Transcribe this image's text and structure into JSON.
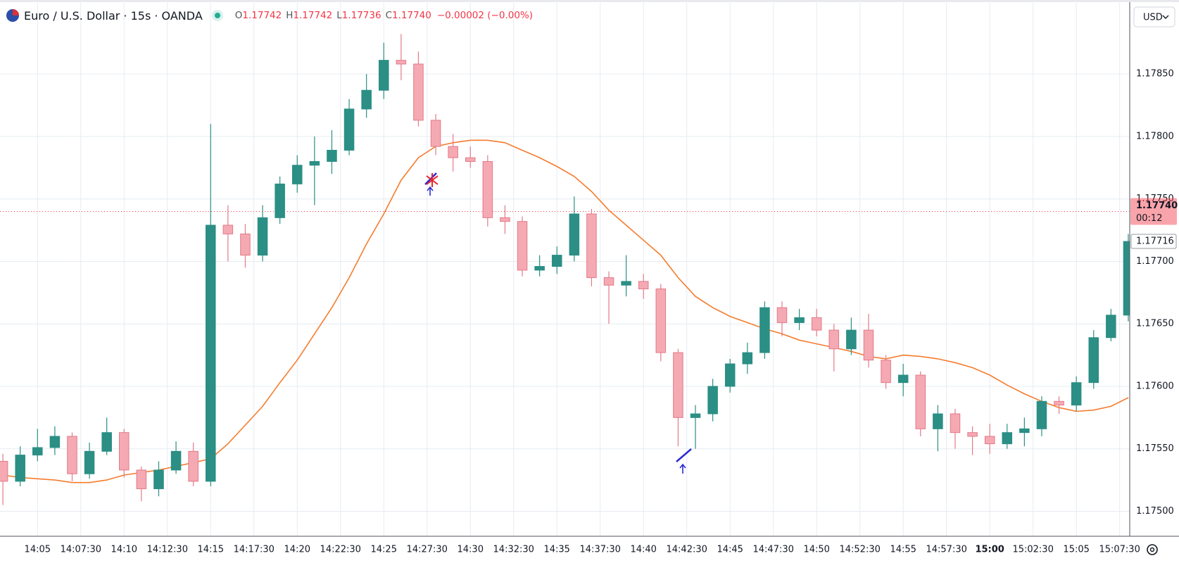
{
  "chart_data": {
    "type": "candlestick",
    "title": "Euro / U.S. Dollar · 15s · OANDA",
    "ohlc": [
      {
        "label": "O",
        "value": "1.17742"
      },
      {
        "label": "H",
        "value": "1.17742"
      },
      {
        "label": "L",
        "value": "1.17736"
      },
      {
        "label": "C",
        "value": "1.17740"
      }
    ],
    "change": "−0.00002 (−0.00%)",
    "currency": "USD",
    "up_color": "#2b8f85",
    "down_color": "#f5a9b3",
    "down_stroke": "#e27b89",
    "grid": true,
    "x": [
      "14:03",
      "14:04",
      "14:05",
      "14:06",
      "14:07",
      "14:08",
      "14:09",
      "14:10",
      "14:11",
      "14:12",
      "14:13",
      "14:14",
      "14:15",
      "14:16",
      "14:17",
      "14:18",
      "14:19",
      "14:20",
      "14:21",
      "14:22",
      "14:23",
      "14:24",
      "14:25",
      "14:26",
      "14:27",
      "14:28",
      "14:29",
      "14:30",
      "14:31",
      "14:32",
      "14:33",
      "14:34",
      "14:35",
      "14:36",
      "14:37",
      "14:38",
      "14:39",
      "14:40",
      "14:41",
      "14:42",
      "14:43",
      "14:44",
      "14:45",
      "14:46",
      "14:47",
      "14:48",
      "14:49",
      "14:50",
      "14:51",
      "14:52",
      "14:53",
      "14:54",
      "14:55",
      "14:56",
      "14:57",
      "14:58",
      "14:59",
      "15:00",
      "15:01",
      "15:02",
      "15:03",
      "15:04",
      "15:05",
      "15:06",
      "15:07",
      "15:08"
    ],
    "open": [
      1.1754,
      1.17524,
      1.17545,
      1.17551,
      1.1756,
      1.1753,
      1.17548,
      1.17563,
      1.17533,
      1.17518,
      1.17533,
      1.17548,
      1.17524,
      1.17729,
      1.17722,
      1.17705,
      1.17735,
      1.17762,
      1.17777,
      1.1778,
      1.17789,
      1.17822,
      1.17837,
      1.17861,
      1.17858,
      1.17813,
      1.17792,
      1.17783,
      1.1778,
      1.17735,
      1.17732,
      1.17693,
      1.17696,
      1.17705,
      1.17738,
      1.17687,
      1.17681,
      1.17684,
      1.17678,
      1.17627,
      1.17575,
      1.17578,
      1.176,
      1.17618,
      1.17627,
      1.17663,
      1.17651,
      1.17655,
      1.17645,
      1.1763,
      1.17645,
      1.17621,
      1.17603,
      1.17609,
      1.17566,
      1.17578,
      1.17563,
      1.1756,
      1.17554,
      1.17563,
      1.17566,
      1.17588,
      1.17585,
      1.17603,
      1.17639,
      1.17657
    ],
    "high": [
      1.17546,
      1.17552,
      1.17566,
      1.17568,
      1.17563,
      1.17555,
      1.17575,
      1.17566,
      1.17536,
      1.1754,
      1.17556,
      1.17555,
      1.1781,
      1.17745,
      1.1773,
      1.17745,
      1.17768,
      1.17785,
      1.178,
      1.17805,
      1.1783,
      1.1785,
      1.17875,
      1.17882,
      1.17868,
      1.17818,
      1.17802,
      1.17792,
      1.17785,
      1.17745,
      1.17736,
      1.17705,
      1.17712,
      1.17752,
      1.17742,
      1.17692,
      1.17705,
      1.1769,
      1.17682,
      1.1763,
      1.17585,
      1.17606,
      1.17622,
      1.17635,
      1.17668,
      1.17668,
      1.17662,
      1.17662,
      1.1765,
      1.17655,
      1.17658,
      1.17625,
      1.17618,
      1.17612,
      1.17585,
      1.17582,
      1.17568,
      1.1757,
      1.1757,
      1.17575,
      1.17592,
      1.17592,
      1.17608,
      1.17645,
      1.17662,
      1.17722
    ],
    "low": [
      1.17505,
      1.1752,
      1.1754,
      1.17545,
      1.17524,
      1.17526,
      1.17545,
      1.17527,
      1.17508,
      1.17512,
      1.1753,
      1.1752,
      1.1752,
      1.177,
      1.17695,
      1.177,
      1.1773,
      1.17755,
      1.17745,
      1.1777,
      1.17785,
      1.17815,
      1.1783,
      1.17845,
      1.17808,
      1.17785,
      1.17772,
      1.17775,
      1.17728,
      1.17722,
      1.17688,
      1.17688,
      1.1769,
      1.177,
      1.1768,
      1.1765,
      1.17672,
      1.1767,
      1.1762,
      1.17552,
      1.1755,
      1.17572,
      1.17595,
      1.1761,
      1.17622,
      1.1764,
      1.17645,
      1.1764,
      1.17612,
      1.17625,
      1.17615,
      1.17598,
      1.17592,
      1.1756,
      1.17548,
      1.1755,
      1.17545,
      1.17546,
      1.1755,
      1.17552,
      1.1756,
      1.17578,
      1.1758,
      1.17598,
      1.17636,
      1.17652
    ],
    "close": [
      1.17524,
      1.17545,
      1.17551,
      1.1756,
      1.1753,
      1.17548,
      1.17563,
      1.17533,
      1.17518,
      1.17533,
      1.17548,
      1.17524,
      1.17729,
      1.17722,
      1.17705,
      1.17735,
      1.17762,
      1.17777,
      1.1778,
      1.17789,
      1.17822,
      1.17837,
      1.17861,
      1.17858,
      1.17813,
      1.17792,
      1.17783,
      1.1778,
      1.17735,
      1.17732,
      1.17693,
      1.17696,
      1.17705,
      1.17738,
      1.17687,
      1.17681,
      1.17684,
      1.17678,
      1.17627,
      1.17575,
      1.17578,
      1.176,
      1.17618,
      1.17627,
      1.17663,
      1.17651,
      1.17655,
      1.17645,
      1.1763,
      1.17645,
      1.17621,
      1.17603,
      1.17609,
      1.17566,
      1.17578,
      1.17563,
      1.1756,
      1.17554,
      1.17563,
      1.17566,
      1.17588,
      1.17585,
      1.17603,
      1.17639,
      1.17657,
      1.17716
    ],
    "ma": {
      "color": "#f57c2e",
      "values": [
        1.17529,
        1.17527,
        1.17526,
        1.17525,
        1.17523,
        1.17523,
        1.17525,
        1.17529,
        1.17531,
        1.17533,
        1.17536,
        1.17539,
        1.17542,
        1.17554,
        1.17569,
        1.17584,
        1.17603,
        1.17621,
        1.17642,
        1.17663,
        1.17687,
        1.17714,
        1.17738,
        1.17765,
        1.17783,
        1.17792,
        1.17795,
        1.17797,
        1.17797,
        1.17795,
        1.17789,
        1.17783,
        1.17776,
        1.17768,
        1.17756,
        1.17741,
        1.17729,
        1.17717,
        1.17705,
        1.17687,
        1.17672,
        1.17663,
        1.17656,
        1.17651,
        1.17646,
        1.17642,
        1.17637,
        1.17634,
        1.17631,
        1.17628,
        1.17624,
        1.17622,
        1.17625,
        1.17624,
        1.17622,
        1.17619,
        1.17615,
        1.17609,
        1.17601,
        1.17594,
        1.17588,
        1.17583,
        1.1758,
        1.17581,
        1.17584,
        1.17591
      ]
    },
    "xlim": [
      "14:02:50",
      "15:08:05"
    ],
    "xticks": [
      "14:05",
      "14:07:30",
      "14:10",
      "14:12:30",
      "14:15",
      "14:17:30",
      "14:20",
      "14:22:30",
      "14:25",
      "14:27:30",
      "14:30",
      "14:32:30",
      "14:35",
      "14:37:30",
      "14:40",
      "14:42:30",
      "14:45",
      "14:47:30",
      "14:50",
      "14:52:30",
      "14:55",
      "14:57:30",
      "15:00",
      "15:02:30",
      "15:05",
      "15:07:30"
    ],
    "ylim": [
      1.1748,
      1.17907
    ],
    "yticks": [
      {
        "value": 1.175,
        "label": "1.17500"
      },
      {
        "value": 1.1755,
        "label": "1.17550"
      },
      {
        "value": 1.176,
        "label": "1.17600"
      },
      {
        "value": 1.1765,
        "label": "1.17650"
      },
      {
        "value": 1.177,
        "label": "1.17700"
      },
      {
        "value": 1.1775,
        "label": "1.17750"
      },
      {
        "value": 1.178,
        "label": "1.17800"
      },
      {
        "value": 1.1785,
        "label": "1.17850"
      }
    ],
    "last_price": {
      "value": 1.1774,
      "label": "1.17740",
      "color": "#f23645"
    },
    "countdown": "00:12",
    "marker_price": {
      "value": 1.17716,
      "label": "1.17716"
    }
  }
}
